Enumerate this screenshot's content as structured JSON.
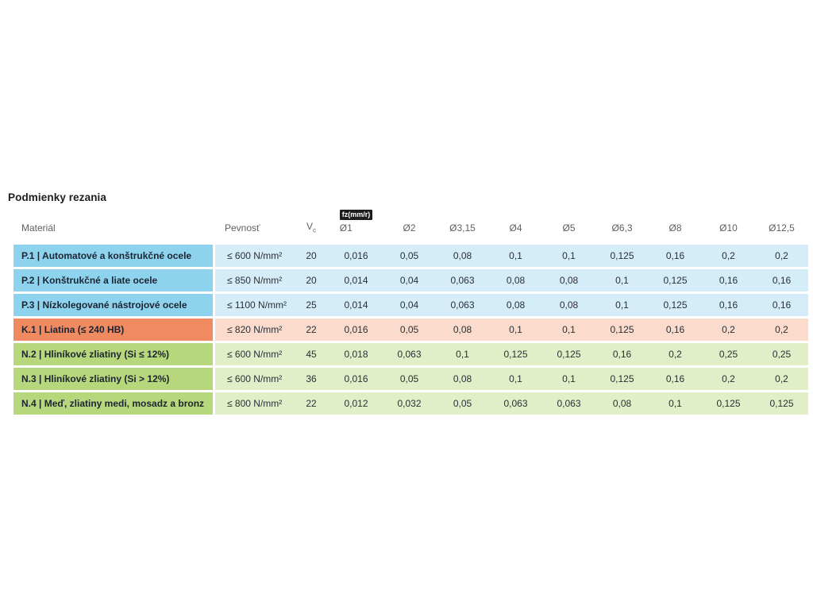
{
  "title": "Podmienky rezania",
  "table": {
    "headers": {
      "material": "Materiál",
      "strength": "Pevnosť",
      "vc_main": "V",
      "vc_sub": "c",
      "fz_badge": "fz(mm/r)",
      "diameters": [
        "Ø1",
        "Ø2",
        "Ø3,15",
        "Ø4",
        "Ø5",
        "Ø6,3",
        "Ø8",
        "Ø10",
        "Ø12,5"
      ]
    },
    "badge_colors": {
      "bg": "#1d1d1b",
      "text": "#ffffff"
    },
    "group_colors": {
      "steel": {
        "label_bg": "#8ed3ee",
        "row_bg": "#d4edf9"
      },
      "cast_iron": {
        "label_bg": "#ef8a61",
        "row_bg": "#fadbcc"
      },
      "nonferrous": {
        "label_bg": "#b7d77c",
        "row_bg": "#e1eec7"
      }
    },
    "rows": [
      {
        "group": "steel",
        "material": "P.1 | Automatové a konštrukčné ocele",
        "strength": "≤ 600 N/mm²",
        "vc": "20",
        "fz": [
          "0,016",
          "0,05",
          "0,08",
          "0,1",
          "0,1",
          "0,125",
          "0,16",
          "0,2",
          "0,2"
        ]
      },
      {
        "group": "steel",
        "material": "P.2 | Konštrukčné a liate ocele",
        "strength": "≤ 850 N/mm²",
        "vc": "20",
        "fz": [
          "0,014",
          "0,04",
          "0,063",
          "0,08",
          "0,08",
          "0,1",
          "0,125",
          "0,16",
          "0,16"
        ]
      },
      {
        "group": "steel",
        "material": "P.3 | Nízkolegované nástrojové ocele",
        "strength": "≤ 1100 N/mm²",
        "vc": "25",
        "fz": [
          "0,014",
          "0,04",
          "0,063",
          "0,08",
          "0,08",
          "0,1",
          "0,125",
          "0,16",
          "0,16"
        ]
      },
      {
        "group": "cast_iron",
        "material": "K.1 | Liatina (≤ 240 HB)",
        "strength": "≤ 820 N/mm²",
        "vc": "22",
        "fz": [
          "0,016",
          "0,05",
          "0,08",
          "0,1",
          "0,1",
          "0,125",
          "0,16",
          "0,2",
          "0,2"
        ]
      },
      {
        "group": "nonferrous",
        "material": "N.2 | Hliníkové zliatiny (Si ≤ 12%)",
        "strength": "≤ 600 N/mm²",
        "vc": "45",
        "fz": [
          "0,018",
          "0,063",
          "0,1",
          "0,125",
          "0,125",
          "0,16",
          "0,2",
          "0,25",
          "0,25"
        ]
      },
      {
        "group": "nonferrous",
        "material": "N.3 | Hliníkové zliatiny (Si > 12%)",
        "strength": "≤ 600 N/mm²",
        "vc": "36",
        "fz": [
          "0,016",
          "0,05",
          "0,08",
          "0,1",
          "0,1",
          "0,125",
          "0,16",
          "0,2",
          "0,2"
        ]
      },
      {
        "group": "nonferrous",
        "material": "N.4 | Meď, zliatiny medi, mosadz a bronz",
        "strength": "≤ 800 N/mm²",
        "vc": "22",
        "fz": [
          "0,012",
          "0,032",
          "0,05",
          "0,063",
          "0,063",
          "0,08",
          "0,1",
          "0,125",
          "0,125"
        ]
      }
    ]
  }
}
